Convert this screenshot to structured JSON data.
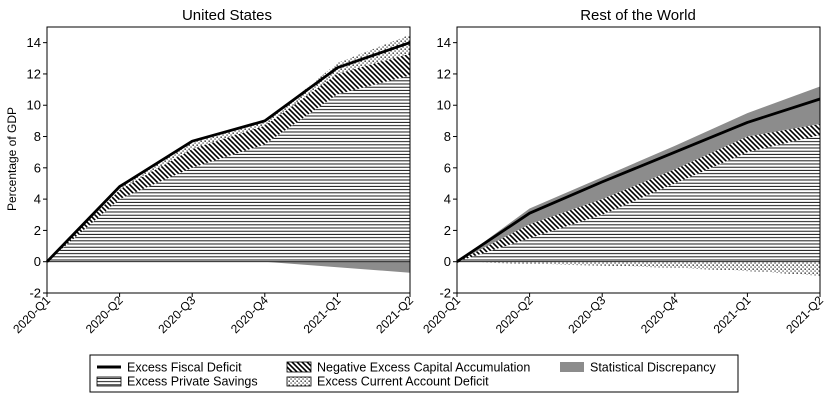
{
  "chart_data": [
    {
      "type": "area",
      "title": "United States",
      "xlabel": "",
      "ylabel": "Percentage of GDP",
      "categories": [
        "2020-Q1",
        "2020-Q2",
        "2020-Q3",
        "2020-Q4",
        "2021-Q1",
        "2021-Q2"
      ],
      "yticks": [
        "-2",
        "0",
        "2",
        "4",
        "6",
        "8",
        "10",
        "12",
        "14"
      ],
      "ylim": [
        -2,
        15
      ],
      "grid": false,
      "series": [
        {
          "name": "Excess Fiscal Deficit",
          "kind": "line",
          "values": [
            0,
            4.8,
            7.7,
            9.0,
            12.4,
            14.0
          ]
        },
        {
          "name": "Excess Private Savings",
          "kind": "band",
          "lower": [
            0,
            0,
            0,
            0,
            0,
            0
          ],
          "upper": [
            0,
            4.0,
            6.0,
            7.5,
            10.7,
            11.9
          ]
        },
        {
          "name": "Negative Excess Capital Accumulation",
          "kind": "band",
          "lower": [
            0,
            4.0,
            6.0,
            7.5,
            10.7,
            11.9
          ],
          "upper": [
            0,
            4.6,
            7.2,
            8.7,
            12.0,
            13.3
          ]
        },
        {
          "name": "Excess Current Account Deficit",
          "kind": "band",
          "lower": [
            0,
            4.6,
            7.2,
            8.7,
            12.0,
            13.3
          ],
          "upper": [
            0,
            4.8,
            7.6,
            8.9,
            12.7,
            14.5
          ]
        },
        {
          "name": "Statistical Discrepancy",
          "kind": "band",
          "lower": [
            0,
            0,
            0,
            0,
            -0.35,
            -0.7
          ],
          "upper": [
            0,
            0,
            0,
            0,
            0,
            0
          ]
        }
      ]
    },
    {
      "type": "area",
      "title": "Rest of the World",
      "xlabel": "",
      "ylabel": "",
      "categories": [
        "2020-Q1",
        "2020-Q2",
        "2020-Q3",
        "2020-Q4",
        "2021-Q1",
        "2021-Q2"
      ],
      "yticks": [
        "-2",
        "0",
        "2",
        "4",
        "6",
        "8",
        "10",
        "12",
        "14"
      ],
      "ylim": [
        -2,
        15
      ],
      "grid": false,
      "series": [
        {
          "name": "Excess Fiscal Deficit",
          "kind": "line",
          "values": [
            0,
            3.1,
            5.1,
            7.0,
            8.9,
            10.4
          ]
        },
        {
          "name": "Excess Private Savings",
          "kind": "band",
          "lower": [
            0,
            0,
            0,
            0,
            0,
            0
          ],
          "upper": [
            0,
            1.5,
            3.0,
            5.0,
            7.0,
            8.1
          ]
        },
        {
          "name": "Negative Excess Capital Accumulation",
          "kind": "band",
          "lower": [
            0,
            1.5,
            3.0,
            5.0,
            7.0,
            8.1
          ],
          "upper": [
            0,
            2.4,
            4.0,
            5.9,
            8.0,
            8.8
          ]
        },
        {
          "name": "Statistical Discrepancy",
          "kind": "band",
          "lower": [
            0,
            2.4,
            4.0,
            5.9,
            8.0,
            8.8
          ],
          "upper": [
            0,
            3.4,
            5.4,
            7.4,
            9.5,
            11.2
          ]
        },
        {
          "name": "Excess Current Account Deficit",
          "kind": "band",
          "lower": [
            0,
            -0.15,
            -0.25,
            -0.4,
            -0.6,
            -0.9
          ],
          "upper": [
            0,
            0,
            0,
            0,
            0,
            0
          ]
        }
      ]
    }
  ],
  "legend": {
    "placement": "bottom",
    "items": [
      {
        "label": "Excess Fiscal Deficit",
        "swatch": "line"
      },
      {
        "label": "Excess Private Savings",
        "swatch": "hlines"
      },
      {
        "label": "Negative Excess Capital Accumulation",
        "swatch": "diag"
      },
      {
        "label": "Excess Current Account Deficit",
        "swatch": "dots"
      },
      {
        "label": "Statistical Discrepancy",
        "swatch": "gray"
      }
    ]
  },
  "colors": {
    "line": "#000000",
    "gray_fill": "#8c8c8c",
    "hatch": "#000000"
  }
}
